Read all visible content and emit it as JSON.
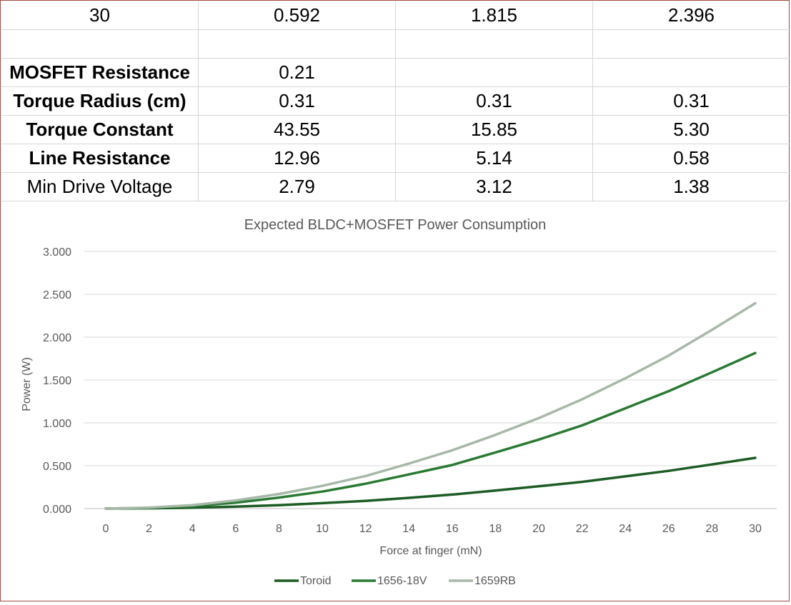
{
  "table": {
    "rows": [
      {
        "label": "30",
        "values": [
          "0.592",
          "1.815",
          "2.396"
        ],
        "bold": false
      },
      {
        "label": "",
        "values": [
          "",
          "",
          ""
        ],
        "bold": false
      },
      {
        "label": "MOSFET Resistance",
        "values": [
          "0.21",
          "",
          ""
        ],
        "bold": true
      },
      {
        "label": "Torque Radius (cm)",
        "values": [
          "0.31",
          "0.31",
          "0.31"
        ],
        "bold": true
      },
      {
        "label": "Torque Constant",
        "values": [
          "43.55",
          "15.85",
          "5.30"
        ],
        "bold": true
      },
      {
        "label": "Line Resistance",
        "values": [
          "12.96",
          "5.14",
          "0.58"
        ],
        "bold": true
      },
      {
        "label": "Min Drive Voltage",
        "values": [
          "2.79",
          "3.12",
          "1.38"
        ],
        "bold": false
      }
    ]
  },
  "chart_data": {
    "type": "line",
    "title": "Expected BLDC+MOSFET  Power Consumption",
    "xlabel": "Force at finger (mN)",
    "ylabel": "Power (W)",
    "x": [
      0,
      2,
      4,
      6,
      8,
      10,
      12,
      14,
      16,
      18,
      20,
      22,
      24,
      26,
      28,
      30
    ],
    "x_ticks": [
      "0",
      "2",
      "4",
      "6",
      "8",
      "10",
      "12",
      "14",
      "16",
      "18",
      "20",
      "22",
      "24",
      "26",
      "28",
      "30"
    ],
    "ylim": [
      0,
      3
    ],
    "y_ticks": [
      "0.000",
      "0.500",
      "1.000",
      "1.500",
      "2.000",
      "2.500",
      "3.000"
    ],
    "y_tick_values": [
      0,
      0.5,
      1.0,
      1.5,
      2.0,
      2.5,
      3.0
    ],
    "grid": true,
    "legend_position": "bottom",
    "series": [
      {
        "name": "Toroid",
        "color": "#1d5c24",
        "values": [
          0.0,
          0.003,
          0.01,
          0.023,
          0.04,
          0.063,
          0.09,
          0.125,
          0.163,
          0.21,
          0.26,
          0.312,
          0.376,
          0.44,
          0.515,
          0.592
        ]
      },
      {
        "name": "1656-18V",
        "color": "#2a7a33",
        "values": [
          0.0,
          0.008,
          0.028,
          0.068,
          0.128,
          0.198,
          0.29,
          0.398,
          0.508,
          0.655,
          0.805,
          0.97,
          1.17,
          1.37,
          1.59,
          1.815
        ]
      },
      {
        "name": "1659RB",
        "color": "#a7b8a8",
        "values": [
          0.0,
          0.012,
          0.04,
          0.095,
          0.17,
          0.265,
          0.38,
          0.525,
          0.68,
          0.86,
          1.055,
          1.275,
          1.52,
          1.785,
          2.085,
          2.396
        ]
      }
    ]
  }
}
